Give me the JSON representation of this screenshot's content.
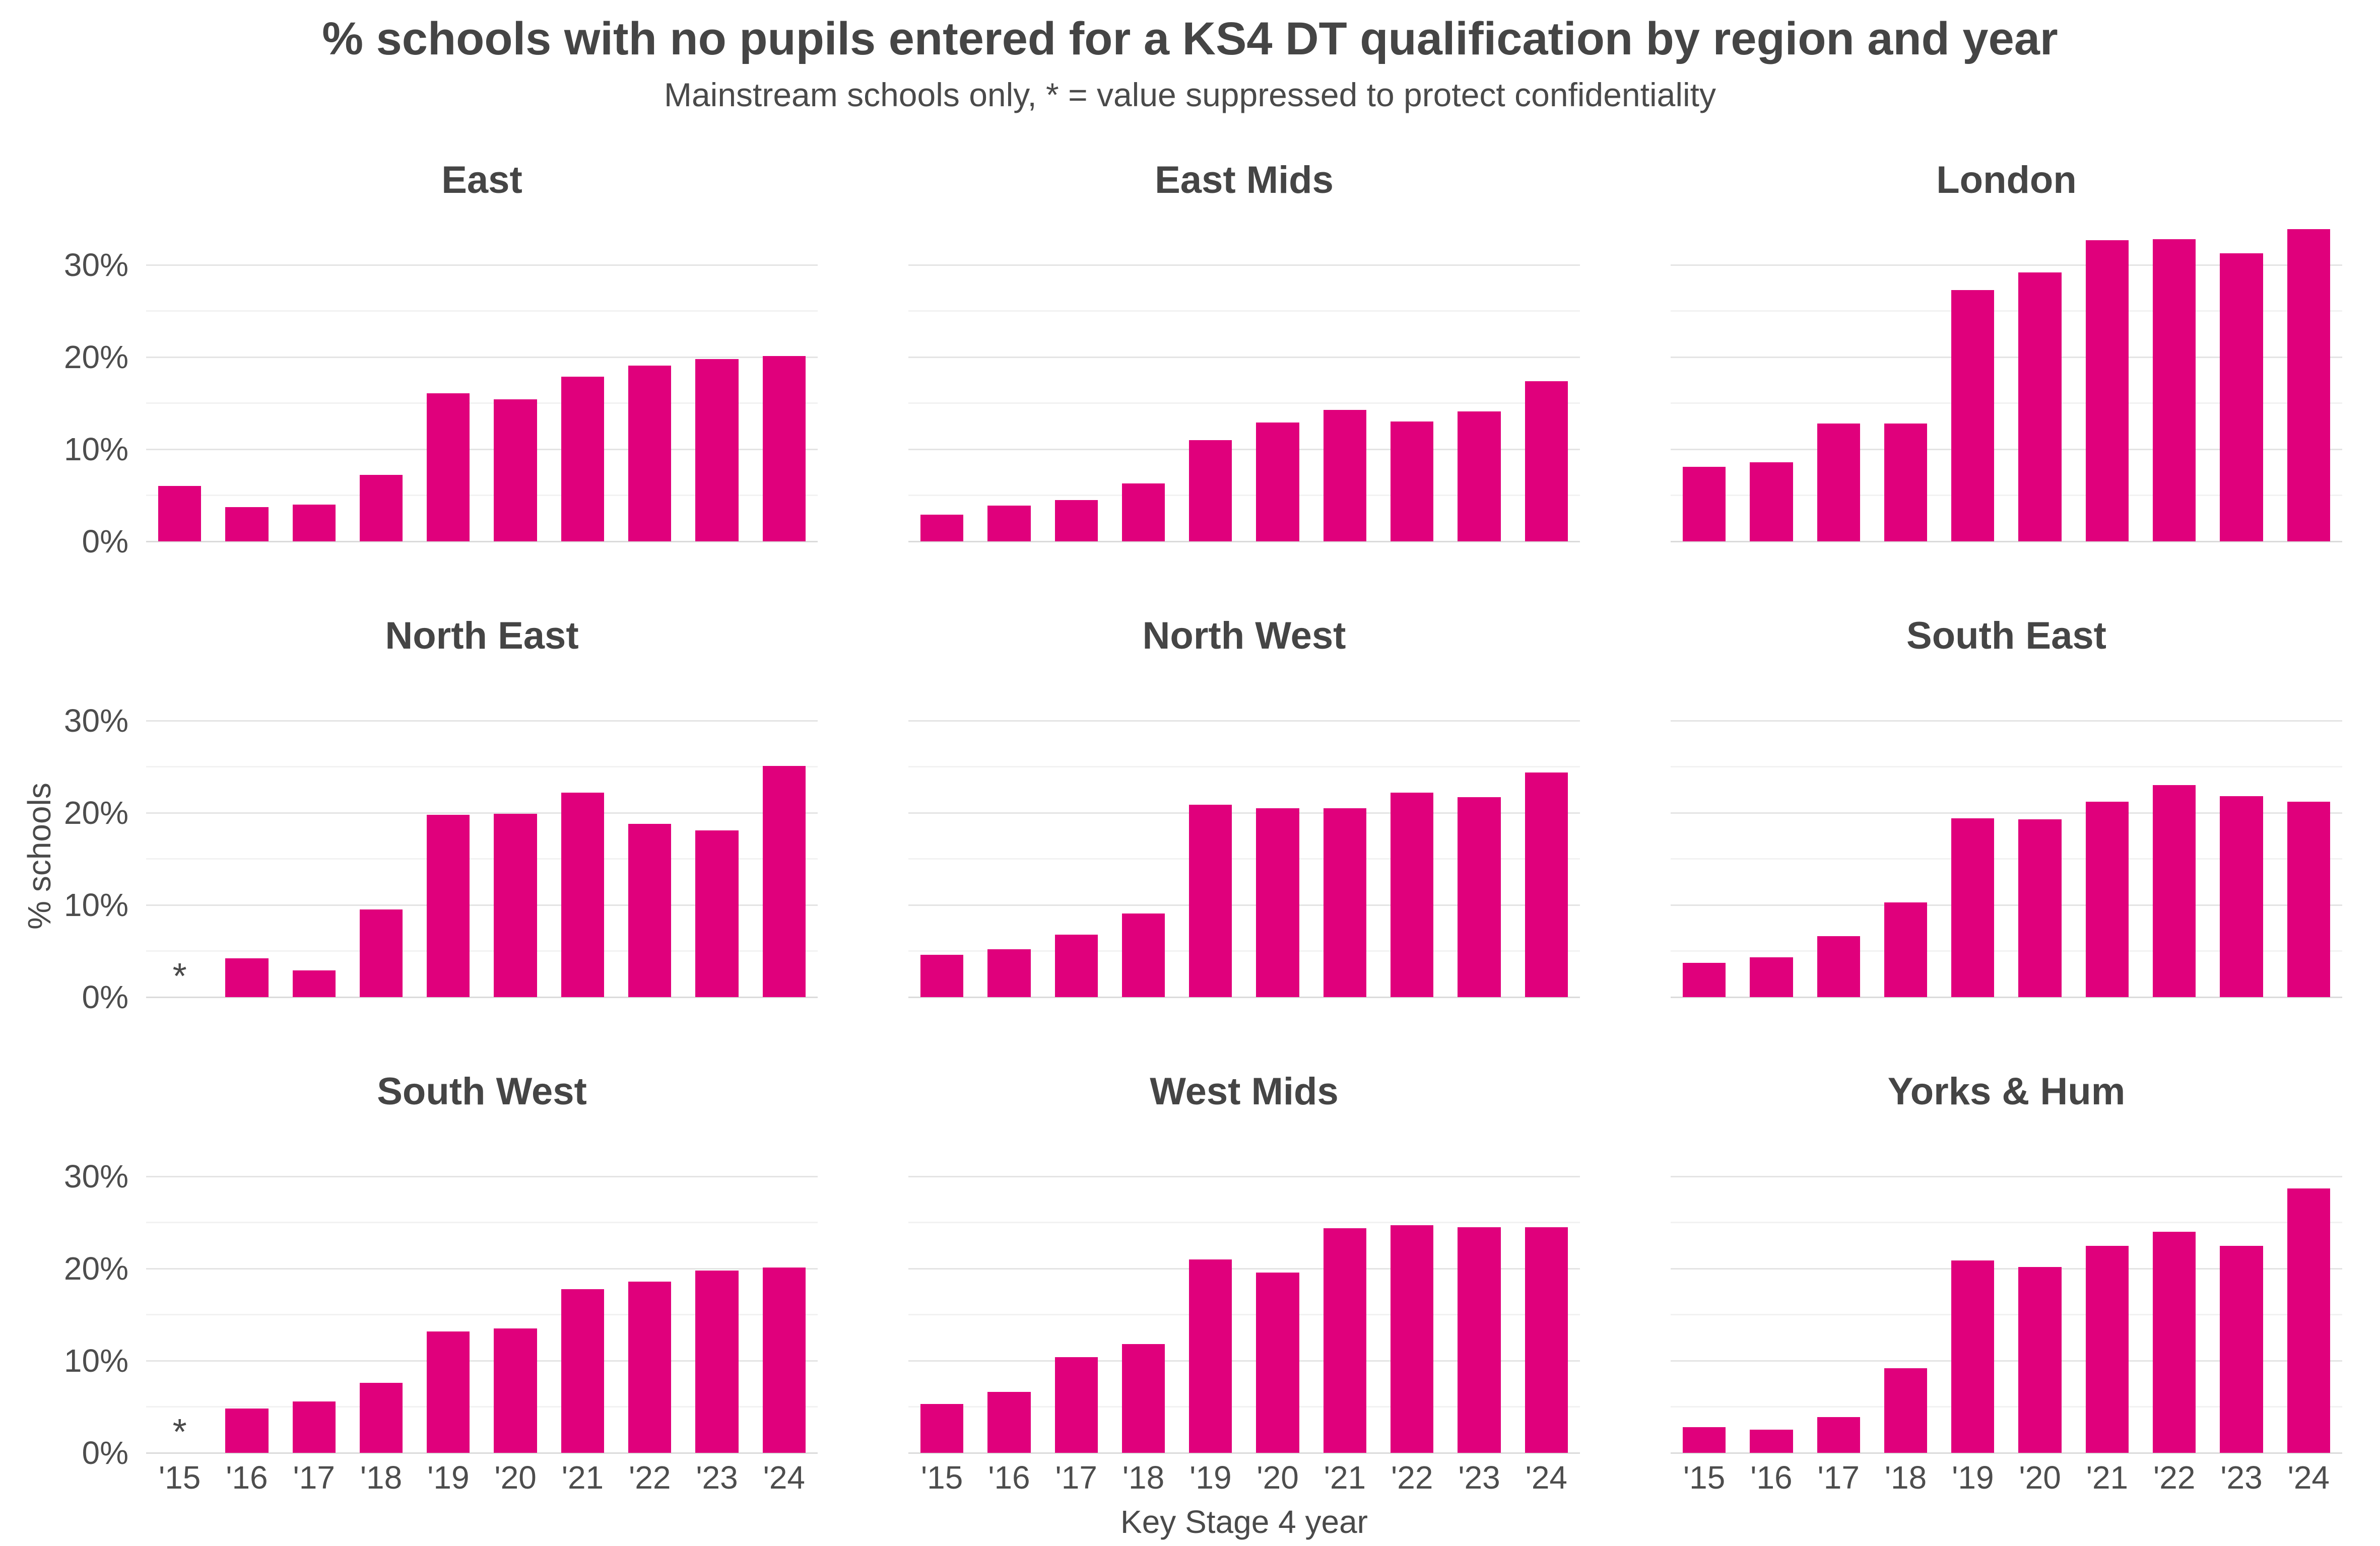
{
  "colors": {
    "bar": "#E0007C",
    "grid_major": "#E4E4E4",
    "grid_minor": "#F2F2F2",
    "axis_baseline": "#DBDBDB",
    "text": "#474747"
  },
  "chart_data": {
    "type": "bar",
    "title": "% schools with no pupils entered for a KS4 DT qualification by region and year",
    "subtitle": "Mainstream schools only, * = value suppressed to protect confidentiality",
    "xlabel": "Key Stage 4 year",
    "ylabel": "% schools",
    "unit": "percent",
    "categories": [
      "'15",
      "'16",
      "'17",
      "'18",
      "'19",
      "'20",
      "'21",
      "'22",
      "'23",
      "'24"
    ],
    "ylim": [
      0,
      35
    ],
    "y_ticks": [
      {
        "value": 0,
        "label": "0%"
      },
      {
        "value": 10,
        "label": "10%"
      },
      {
        "value": 20,
        "label": "20%"
      },
      {
        "value": 30,
        "label": "30%"
      }
    ],
    "y_gridlines_major": [
      0,
      10,
      20,
      30
    ],
    "y_gridlines_minor": [
      5,
      15,
      25
    ],
    "grid": "horizontal gridlines only",
    "legend": "none",
    "facet_layout": {
      "rows": 3,
      "cols": 3
    },
    "suppressed_marker": "*",
    "suppressed_note": "null value = suppressed to protect confidentiality, shown as *",
    "series": [
      {
        "name": "East",
        "values": [
          6.0,
          3.7,
          4.0,
          7.2,
          16.1,
          15.4,
          17.9,
          19.1,
          19.8,
          20.1
        ]
      },
      {
        "name": "East Mids",
        "values": [
          2.9,
          3.9,
          4.5,
          6.3,
          11.0,
          12.9,
          14.3,
          13.0,
          14.1,
          17.4
        ]
      },
      {
        "name": "London",
        "values": [
          8.1,
          8.6,
          12.8,
          12.8,
          27.3,
          29.2,
          32.7,
          32.8,
          31.3,
          33.9
        ]
      },
      {
        "name": "North East",
        "values": [
          null,
          4.2,
          2.9,
          9.5,
          19.8,
          19.9,
          22.2,
          18.8,
          18.1,
          25.1
        ]
      },
      {
        "name": "North West",
        "values": [
          4.6,
          5.2,
          6.8,
          9.1,
          20.9,
          20.5,
          20.5,
          22.2,
          21.7,
          24.4
        ]
      },
      {
        "name": "South East",
        "values": [
          3.7,
          4.3,
          6.6,
          10.3,
          19.4,
          19.3,
          21.2,
          23.0,
          21.8,
          21.2
        ]
      },
      {
        "name": "South West",
        "values": [
          null,
          4.8,
          5.6,
          7.6,
          13.2,
          13.5,
          17.8,
          18.6,
          19.8,
          20.1
        ]
      },
      {
        "name": "West Mids",
        "values": [
          5.3,
          6.6,
          10.4,
          11.8,
          21.0,
          19.6,
          24.4,
          24.7,
          24.5,
          24.5
        ]
      },
      {
        "name": "Yorks & Hum",
        "values": [
          2.8,
          2.5,
          3.9,
          9.2,
          20.9,
          20.2,
          22.5,
          24.0,
          22.5,
          28.7
        ]
      }
    ]
  }
}
